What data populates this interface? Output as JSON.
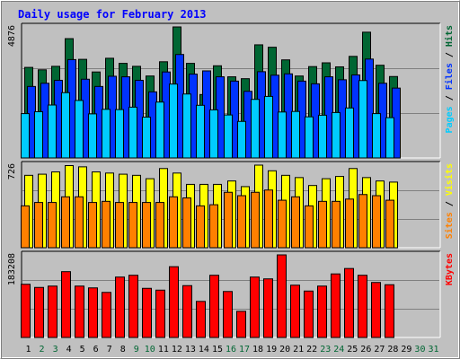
{
  "title": "Daily usage for February 2013",
  "colors": {
    "background": "#c0c0c0",
    "hits": "#006633",
    "files": "#0033ff",
    "pages": "#00ccff",
    "visits": "#ffff00",
    "sites": "#ff8000",
    "kbytes": "#ff0000",
    "title": "#0000ff",
    "weekend": "#006633"
  },
  "chart_data": [
    {
      "type": "bar",
      "title": "Daily usage for February 2013",
      "categories": [
        "1",
        "2",
        "3",
        "4",
        "5",
        "6",
        "7",
        "8",
        "9",
        "10",
        "11",
        "12",
        "13",
        "14",
        "15",
        "16",
        "17",
        "18",
        "19",
        "20",
        "21",
        "22",
        "23",
        "24",
        "25",
        "26",
        "27",
        "28",
        "29",
        "30",
        "31"
      ],
      "weekend_days": [
        "2",
        "3",
        "9",
        "10",
        "16",
        "17",
        "23",
        "24",
        "30",
        "31"
      ],
      "ymax_label": "4876",
      "ylabel_parts": [
        "Pages",
        "Files",
        "Hits"
      ],
      "series": [
        {
          "name": "Hits",
          "values": [
            3370,
            3280,
            3410,
            4440,
            3670,
            3200,
            3710,
            3520,
            3410,
            3050,
            3580,
            4876,
            3520,
            2360,
            3430,
            3020,
            2950,
            4210,
            4120,
            3650,
            3050,
            3400,
            3540,
            3390,
            3780,
            4680,
            3450,
            3030,
            0,
            0,
            0
          ]
        },
        {
          "name": "Files",
          "values": [
            2660,
            2780,
            2890,
            3660,
            2930,
            2660,
            3040,
            3020,
            2890,
            2460,
            3200,
            3850,
            3120,
            3240,
            3020,
            2860,
            2480,
            3210,
            3080,
            3130,
            2860,
            2760,
            3020,
            2910,
            3090,
            3680,
            2780,
            2600,
            0,
            0,
            0
          ]
        },
        {
          "name": "Pages",
          "values": [
            1650,
            1720,
            1970,
            2430,
            2140,
            1640,
            1810,
            1800,
            1890,
            1520,
            2080,
            2750,
            2380,
            1960,
            1790,
            1600,
            1360,
            2180,
            2290,
            1710,
            1730,
            1530,
            1590,
            1690,
            1860,
            2880,
            1650,
            1500,
            0,
            0,
            0
          ]
        }
      ]
    },
    {
      "type": "bar",
      "ymax_label": "726",
      "ylabel_parts": [
        "Sites",
        "Visits"
      ],
      "series": [
        {
          "name": "Visits",
          "values": [
            640,
            650,
            670,
            726,
            715,
            670,
            660,
            650,
            640,
            610,
            700,
            660,
            560,
            560,
            560,
            590,
            540,
            730,
            680,
            640,
            620,
            550,
            610,
            630,
            700,
            620,
            590,
            580,
            0,
            0,
            0
          ]
        },
        {
          "name": "Sites",
          "values": [
            370,
            400,
            400,
            450,
            450,
            400,
            410,
            400,
            400,
            400,
            400,
            450,
            440,
            370,
            380,
            490,
            460,
            490,
            510,
            420,
            450,
            370,
            410,
            410,
            430,
            470,
            460,
            420,
            0,
            0,
            0
          ]
        }
      ]
    },
    {
      "type": "bar",
      "ymax_label": "183208",
      "ylabel_parts": [
        "KBytes"
      ],
      "series": [
        {
          "name": "KBytes",
          "values": [
            118000,
            111000,
            114000,
            146000,
            114000,
            110000,
            100000,
            134000,
            138000,
            109000,
            105000,
            157000,
            115000,
            80000,
            138000,
            102000,
            58000,
            134000,
            130000,
            183208,
            116000,
            103000,
            114000,
            141000,
            153000,
            138000,
            122000,
            117000,
            0,
            0,
            0
          ]
        }
      ]
    }
  ]
}
